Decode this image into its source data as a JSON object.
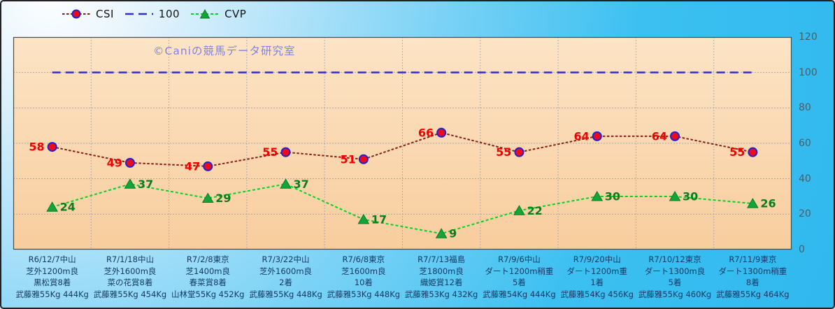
{
  "watermark": "©Caniの競馬データ研究室",
  "chart_data": {
    "type": "line",
    "title": "",
    "xlabel": "",
    "ylabel": "",
    "ylim": [
      0,
      120
    ],
    "y_ticks": [
      0,
      20,
      40,
      60,
      80,
      100,
      120
    ],
    "grid": true,
    "legend_position": "top",
    "watermark": "©Caniの競馬データ研究室",
    "categories": [
      [
        "R6/12/7中山",
        "芝外1200m良",
        "黒松賞8着",
        "武藤雅55Kg 444Kg"
      ],
      [
        "R7/1/18中山",
        "芝外1600m良",
        "菜の花賞8着",
        "武藤雅55Kg 454Kg"
      ],
      [
        "R7/2/8東京",
        "芝1400m良",
        "春菜賞8着",
        "山林堂55Kg 452Kg"
      ],
      [
        "R7/3/22中山",
        "芝外1600m良",
        "2着",
        "武藤雅55Kg 448Kg"
      ],
      [
        "R7/6/8東京",
        "芝1600m良",
        "10着",
        "武藤雅53Kg 448Kg"
      ],
      [
        "R7/7/13福島",
        "芝1800m良",
        "織姫賞12着",
        "武藤雅53Kg 432Kg"
      ],
      [
        "R7/9/6中山",
        "ダート1200m稍重",
        "5着",
        "武藤雅54Kg 444Kg"
      ],
      [
        "R7/9/20中山",
        "ダート1200m重",
        "1着",
        "武藤雅54Kg 456Kg"
      ],
      [
        "R7/10/12東京",
        "ダート1300m良",
        "5着",
        "武藤雅55Kg 460Kg"
      ],
      [
        "R7/11/9東京",
        "ダート1300m稍重",
        "8着",
        "武藤雅55Kg 464Kg"
      ]
    ],
    "series": [
      {
        "name": "CSI",
        "values": [
          58,
          49,
          47,
          55,
          51,
          66,
          55,
          64,
          64,
          55
        ],
        "line_color": "#8b1f17",
        "dash": "3.5 2.5",
        "line_width": 2,
        "marker": "circle",
        "marker_fill": "#ec0a1c",
        "marker_stroke": "#2222cf",
        "show_labels": true,
        "label_side": "left",
        "label_color": "#f40000"
      },
      {
        "name": "100",
        "values": [
          100,
          100,
          100,
          100,
          100,
          100,
          100,
          100,
          100,
          100
        ],
        "line_color": "#2f2fd2",
        "dash": "12 7",
        "line_width": 2.5,
        "marker": "none",
        "show_labels": false,
        "label_side": "right",
        "label_color": "#2f2fd2"
      },
      {
        "name": "CVP",
        "values": [
          24,
          37,
          29,
          37,
          17,
          9,
          22,
          30,
          30,
          26
        ],
        "line_color": "#00d424",
        "dash": "4 3",
        "line_width": 2,
        "marker": "triangle",
        "marker_fill": "#15a33b",
        "marker_stroke": "#0b7d20",
        "show_labels": true,
        "label_side": "right",
        "label_color": "#0b7d20"
      }
    ]
  },
  "colors": {
    "page_bg_light": "#ffffff",
    "page_bg_cyan": "#2db6ee",
    "plot_bg_top": "#fce4c6",
    "plot_bg_bottom": "#f8cd9e",
    "grid": "#9aa0b0",
    "plot_border": "#4b4b52",
    "y_tick_text": "#4c5d68",
    "x_label_text": "#143a64",
    "watermark_text": "#7f80e8"
  }
}
